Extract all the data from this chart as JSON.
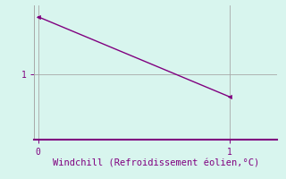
{
  "x": [
    0,
    1
  ],
  "y": [
    2.0,
    0.6
  ],
  "line_color": "#800080",
  "marker_color": "#800080",
  "bg_color": "#D8F5EE",
  "grid_color": "#A8A8A8",
  "bottom_spine_color": "#800080",
  "xlabel": "Windchill (Refroidissement éolien,°C)",
  "xlabel_color": "#800080",
  "xlabel_fontsize": 7.5,
  "tick_color": "#800080",
  "tick_fontsize": 7,
  "xlim": [
    -0.02,
    1.25
  ],
  "ylim": [
    -0.15,
    2.2
  ],
  "xticks": [
    0,
    1
  ],
  "yticks": [
    1
  ],
  "figsize": [
    3.2,
    2.0
  ],
  "dpi": 100
}
